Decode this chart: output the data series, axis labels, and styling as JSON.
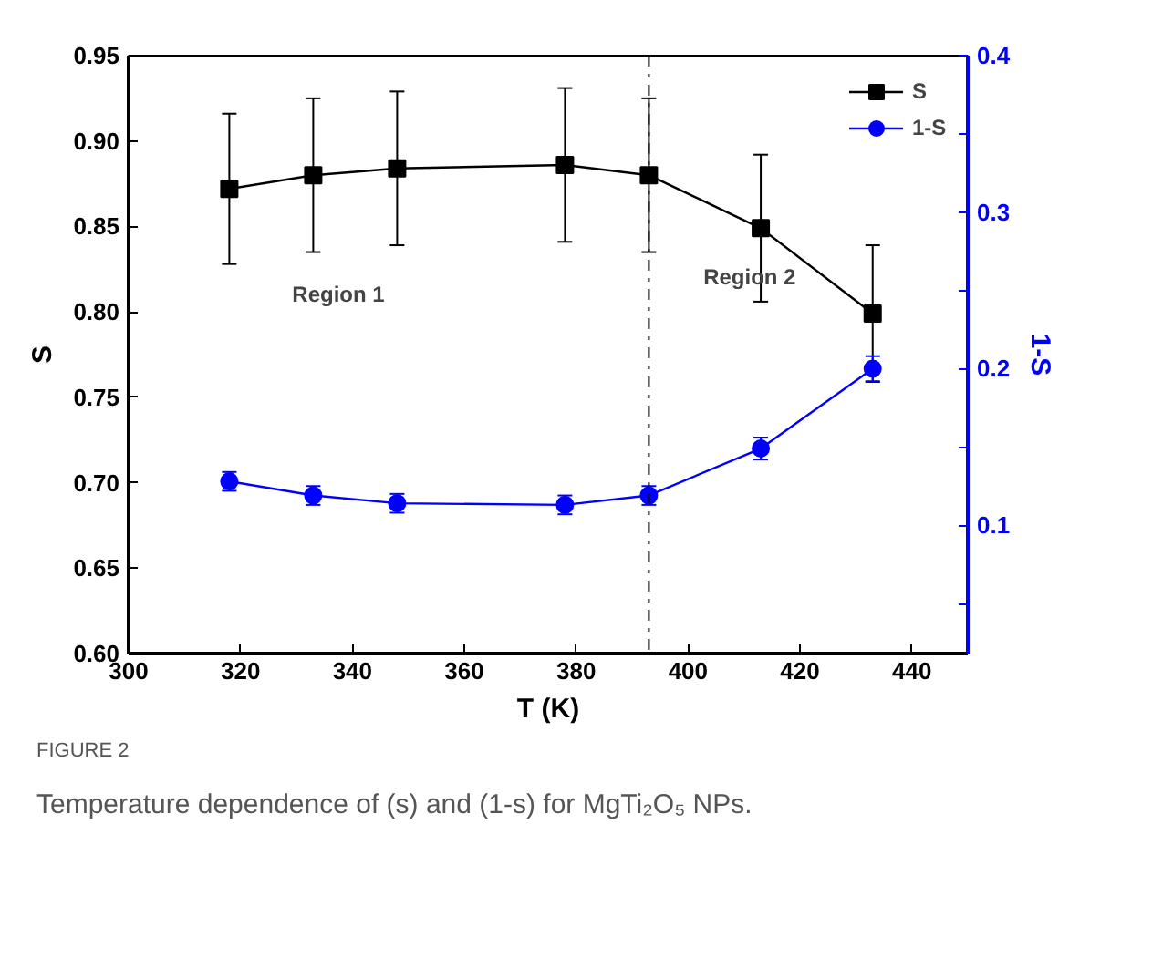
{
  "chart_data": {
    "type": "line",
    "xlabel": "T (K)",
    "ylabel": "S",
    "y2label": "1-S",
    "x": [
      318,
      333,
      348,
      378,
      393,
      413,
      433
    ],
    "series": [
      {
        "name": "S",
        "color": "#000000",
        "marker": "square",
        "values": [
          0.872,
          0.88,
          0.884,
          0.886,
          0.88,
          0.849,
          0.799
        ],
        "errors": [
          0.044,
          0.045,
          0.045,
          0.045,
          0.045,
          0.043,
          0.04
        ]
      },
      {
        "name": "1-S",
        "color": "#0000ff",
        "marker": "circle",
        "axis": "y2",
        "values": [
          0.128,
          0.119,
          0.114,
          0.113,
          0.119,
          0.149,
          0.2
        ],
        "errors": [
          0.006,
          0.006,
          0.006,
          0.006,
          0.006,
          0.007,
          0.008
        ]
      }
    ],
    "xlim": [
      300,
      450
    ],
    "xticks": [
      300,
      320,
      340,
      360,
      380,
      400,
      420,
      440
    ],
    "ylim": [
      0.6,
      0.95
    ],
    "yticks": [
      {
        "value": 0.6,
        "label": "0.60"
      },
      0.65,
      {
        "value": 0.7,
        "label": "0.70"
      },
      0.75,
      {
        "value": 0.8,
        "label": "0.80"
      },
      0.85,
      {
        "value": 0.9,
        "label": "0.90"
      },
      0.95
    ],
    "y2lim": [
      0.018,
      0.4
    ],
    "y2ticks": [
      {
        "value": 0.05,
        "label": null
      },
      0.1,
      {
        "value": 0.15,
        "label": null
      },
      0.2,
      {
        "value": 0.25,
        "label": null
      },
      0.3,
      {
        "value": 0.35,
        "label": null
      },
      0.4
    ],
    "ref_lines": [
      {
        "axis": "x",
        "value": 393,
        "line_style": "dashdot",
        "color": "#000000"
      }
    ],
    "annotations": [
      "Region 1",
      "Region 2",
      "FIGURE 2",
      "Temperature dependence of (s) and (1-s) for MgTi₂O₅ NPs."
    ],
    "legend": "top right",
    "grid": false
  }
}
